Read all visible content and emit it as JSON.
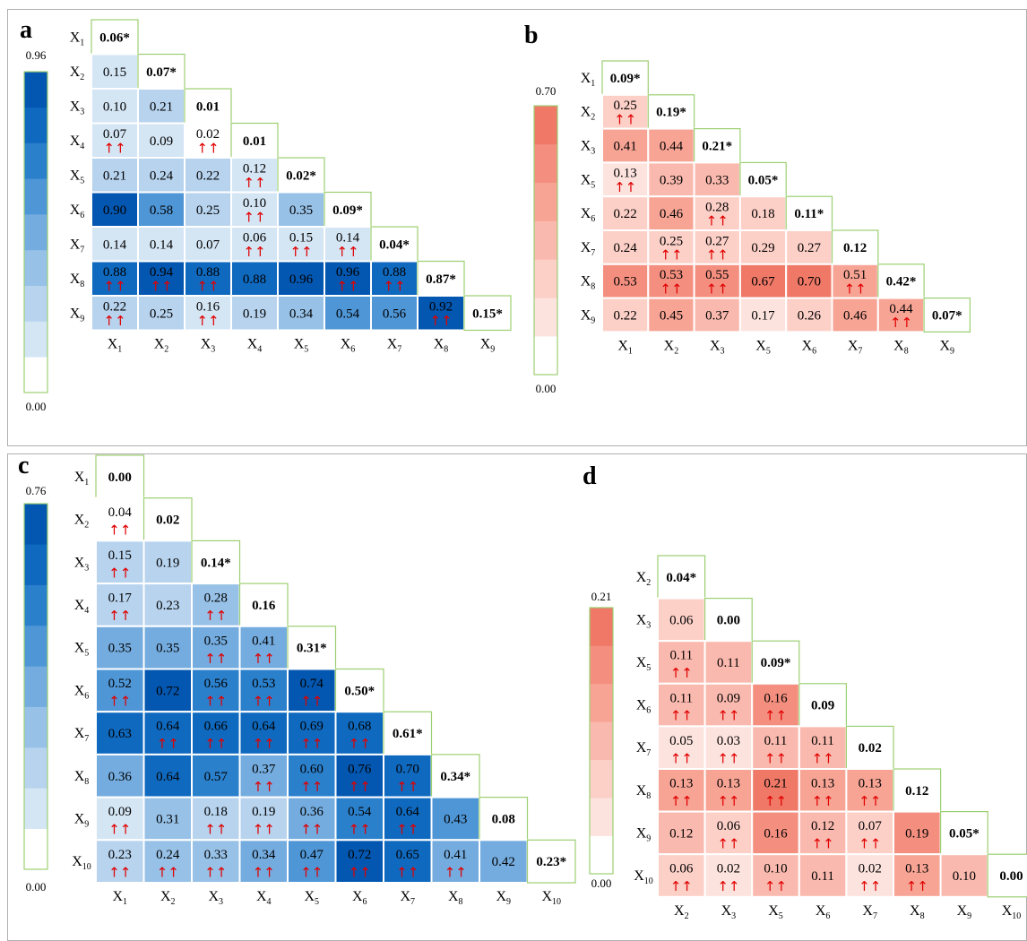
{
  "colors": {
    "diag_border": "#9ccf72",
    "cell_border": "#ffffff",
    "arrow": "#e00000",
    "blue_scale": [
      "#ffffff",
      "#d4e5f4",
      "#b7d3ee",
      "#97c1e7",
      "#74acdf",
      "#4f96d6",
      "#2b80cc",
      "#0f69bf",
      "#0357b0"
    ],
    "red_scale": [
      "#ffffff",
      "#fde3de",
      "#fccfc7",
      "#fab9ae",
      "#f7a495",
      "#f48f7f",
      "#ef7867"
    ]
  },
  "arrow_glyph": "↑↑",
  "chart_data": [
    {
      "type": "heatmap",
      "letter": "a",
      "palette": "blue",
      "scale_max_label": "0.96",
      "scale_min_label": "0.00",
      "vmax": 0.96,
      "row_labels": [
        [
          "X",
          "1"
        ],
        [
          "X",
          "2"
        ],
        [
          "X",
          "3"
        ],
        [
          "X",
          "4"
        ],
        [
          "X",
          "5"
        ],
        [
          "X",
          "6"
        ],
        [
          "X",
          "7"
        ],
        [
          "X",
          "8"
        ],
        [
          "X",
          "9"
        ]
      ],
      "col_labels": [
        [
          "X",
          "1"
        ],
        [
          "X",
          "2"
        ],
        [
          "X",
          "3"
        ],
        [
          "X",
          "4"
        ],
        [
          "X",
          "5"
        ],
        [
          "X",
          "6"
        ],
        [
          "X",
          "7"
        ],
        [
          "X",
          "8"
        ],
        [
          "X",
          "9"
        ]
      ],
      "rows": [
        [
          {
            "v": "0.06*",
            "d": true
          }
        ],
        [
          {
            "v": "0.15"
          },
          {
            "v": "0.07*",
            "d": true
          }
        ],
        [
          {
            "v": "0.10"
          },
          {
            "v": "0.21"
          },
          {
            "v": "0.01",
            "d": true
          }
        ],
        [
          {
            "v": "0.07",
            "a": true
          },
          {
            "v": "0.09"
          },
          {
            "v": "0.02",
            "a": true
          },
          {
            "v": "0.01",
            "d": true
          }
        ],
        [
          {
            "v": "0.21"
          },
          {
            "v": "0.24"
          },
          {
            "v": "0.22"
          },
          {
            "v": "0.12",
            "a": true
          },
          {
            "v": "0.02*",
            "d": true
          }
        ],
        [
          {
            "v": "0.90"
          },
          {
            "v": "0.58"
          },
          {
            "v": "0.25"
          },
          {
            "v": "0.10",
            "a": true
          },
          {
            "v": "0.35"
          },
          {
            "v": "0.09*",
            "d": true
          }
        ],
        [
          {
            "v": "0.14"
          },
          {
            "v": "0.14"
          },
          {
            "v": "0.07"
          },
          {
            "v": "0.06",
            "a": true
          },
          {
            "v": "0.15",
            "a": true
          },
          {
            "v": "0.14",
            "a": true
          },
          {
            "v": "0.04*",
            "d": true
          }
        ],
        [
          {
            "v": "0.88",
            "a": true
          },
          {
            "v": "0.94",
            "a": true
          },
          {
            "v": "0.88",
            "a": true
          },
          {
            "v": "0.88"
          },
          {
            "v": "0.96"
          },
          {
            "v": "0.96",
            "a": true
          },
          {
            "v": "0.88",
            "a": true
          },
          {
            "v": "0.87*",
            "d": true
          }
        ],
        [
          {
            "v": "0.22",
            "a": true
          },
          {
            "v": "0.25"
          },
          {
            "v": "0.16",
            "a": true
          },
          {
            "v": "0.19"
          },
          {
            "v": "0.34"
          },
          {
            "v": "0.54"
          },
          {
            "v": "0.56"
          },
          {
            "v": "0.92",
            "a": true
          },
          {
            "v": "0.15*",
            "d": true
          }
        ]
      ]
    },
    {
      "type": "heatmap",
      "letter": "b",
      "palette": "red",
      "scale_max_label": "0.70",
      "scale_min_label": "0.00",
      "vmax": 0.7,
      "row_labels": [
        [
          "X",
          "1"
        ],
        [
          "X",
          "2"
        ],
        [
          "X",
          "3"
        ],
        [
          "X",
          "5"
        ],
        [
          "X",
          "6"
        ],
        [
          "X",
          "7"
        ],
        [
          "X",
          "8"
        ],
        [
          "X",
          "9"
        ]
      ],
      "col_labels": [
        [
          "X",
          "1"
        ],
        [
          "X",
          "2"
        ],
        [
          "X",
          "3"
        ],
        [
          "X",
          "5"
        ],
        [
          "X",
          "6"
        ],
        [
          "X",
          "7"
        ],
        [
          "X",
          "8"
        ],
        [
          "X",
          "9"
        ]
      ],
      "rows": [
        [
          {
            "v": "0.09*",
            "d": true
          }
        ],
        [
          {
            "v": "0.25",
            "a": true
          },
          {
            "v": "0.19*",
            "d": true
          }
        ],
        [
          {
            "v": "0.41"
          },
          {
            "v": "0.44"
          },
          {
            "v": "0.21*",
            "d": true
          }
        ],
        [
          {
            "v": "0.13",
            "a": true
          },
          {
            "v": "0.39"
          },
          {
            "v": "0.33"
          },
          {
            "v": "0.05*",
            "d": true
          }
        ],
        [
          {
            "v": "0.22"
          },
          {
            "v": "0.46"
          },
          {
            "v": "0.28",
            "a": true
          },
          {
            "v": "0.18"
          },
          {
            "v": "0.11*",
            "d": true
          }
        ],
        [
          {
            "v": "0.24"
          },
          {
            "v": "0.25",
            "a": true
          },
          {
            "v": "0.27",
            "a": true
          },
          {
            "v": "0.29"
          },
          {
            "v": "0.27"
          },
          {
            "v": "0.12",
            "d": true
          }
        ],
        [
          {
            "v": "0.53"
          },
          {
            "v": "0.53",
            "a": true
          },
          {
            "v": "0.55",
            "a": true
          },
          {
            "v": "0.67"
          },
          {
            "v": "0.70"
          },
          {
            "v": "0.51",
            "a": true
          },
          {
            "v": "0.42*",
            "d": true
          }
        ],
        [
          {
            "v": "0.22"
          },
          {
            "v": "0.45"
          },
          {
            "v": "0.37"
          },
          {
            "v": "0.17"
          },
          {
            "v": "0.26"
          },
          {
            "v": "0.46"
          },
          {
            "v": "0.44",
            "a": true
          },
          {
            "v": "0.07*",
            "d": true
          }
        ]
      ]
    },
    {
      "type": "heatmap",
      "letter": "c",
      "palette": "blue",
      "scale_max_label": "0.76",
      "scale_min_label": "0.00",
      "vmax": 0.76,
      "row_labels": [
        [
          "X",
          "1"
        ],
        [
          "X",
          "2"
        ],
        [
          "X",
          "3"
        ],
        [
          "X",
          "4"
        ],
        [
          "X",
          "5"
        ],
        [
          "X",
          "6"
        ],
        [
          "X",
          "7"
        ],
        [
          "X",
          "8"
        ],
        [
          "X",
          "9"
        ],
        [
          "X",
          "10"
        ]
      ],
      "col_labels": [
        [
          "X",
          "1"
        ],
        [
          "X",
          "2"
        ],
        [
          "X",
          "3"
        ],
        [
          "X",
          "4"
        ],
        [
          "X",
          "5"
        ],
        [
          "X",
          "6"
        ],
        [
          "X",
          "7"
        ],
        [
          "X",
          "8"
        ],
        [
          "X",
          "9"
        ],
        [
          "X",
          "10"
        ]
      ],
      "rows": [
        [
          {
            "v": "0.00",
            "d": true
          }
        ],
        [
          {
            "v": "0.04",
            "a": true
          },
          {
            "v": "0.02",
            "d": true
          }
        ],
        [
          {
            "v": "0.15",
            "a": true
          },
          {
            "v": "0.19"
          },
          {
            "v": "0.14*",
            "d": true
          }
        ],
        [
          {
            "v": "0.17",
            "a": true
          },
          {
            "v": "0.23"
          },
          {
            "v": "0.28",
            "a": true
          },
          {
            "v": "0.16",
            "d": true
          }
        ],
        [
          {
            "v": "0.35"
          },
          {
            "v": "0.35"
          },
          {
            "v": "0.35",
            "a": true
          },
          {
            "v": "0.41",
            "a": true
          },
          {
            "v": "0.31*",
            "d": true
          }
        ],
        [
          {
            "v": "0.52",
            "a": true
          },
          {
            "v": "0.72"
          },
          {
            "v": "0.56",
            "a": true
          },
          {
            "v": "0.53",
            "a": true
          },
          {
            "v": "0.74",
            "a": true
          },
          {
            "v": "0.50*",
            "d": true
          }
        ],
        [
          {
            "v": "0.63"
          },
          {
            "v": "0.64",
            "a": true
          },
          {
            "v": "0.66",
            "a": true
          },
          {
            "v": "0.64",
            "a": true
          },
          {
            "v": "0.69",
            "a": true
          },
          {
            "v": "0.68",
            "a": true
          },
          {
            "v": "0.61*",
            "d": true
          }
        ],
        [
          {
            "v": "0.36"
          },
          {
            "v": "0.64"
          },
          {
            "v": "0.57"
          },
          {
            "v": "0.37",
            "a": true
          },
          {
            "v": "0.60",
            "a": true
          },
          {
            "v": "0.76",
            "a": true
          },
          {
            "v": "0.70",
            "a": true
          },
          {
            "v": "0.34*",
            "d": true
          }
        ],
        [
          {
            "v": "0.09",
            "a": true
          },
          {
            "v": "0.31"
          },
          {
            "v": "0.18",
            "a": true
          },
          {
            "v": "0.19",
            "a": true
          },
          {
            "v": "0.36",
            "a": true
          },
          {
            "v": "0.54",
            "a": true
          },
          {
            "v": "0.64",
            "a": true
          },
          {
            "v": "0.43"
          },
          {
            "v": "0.08",
            "d": true
          }
        ],
        [
          {
            "v": "0.23",
            "a": true
          },
          {
            "v": "0.24",
            "a": true
          },
          {
            "v": "0.33",
            "a": true
          },
          {
            "v": "0.34",
            "a": true
          },
          {
            "v": "0.47",
            "a": true
          },
          {
            "v": "0.72",
            "a": true
          },
          {
            "v": "0.65",
            "a": true
          },
          {
            "v": "0.41",
            "a": true
          },
          {
            "v": "0.42"
          },
          {
            "v": "0.23*",
            "d": true
          }
        ]
      ]
    },
    {
      "type": "heatmap",
      "letter": "d",
      "palette": "red",
      "scale_max_label": "0.21",
      "scale_min_label": "0.00",
      "vmax": 0.21,
      "row_labels": [
        [
          "X",
          "2"
        ],
        [
          "X",
          "3"
        ],
        [
          "X",
          "5"
        ],
        [
          "X",
          "6"
        ],
        [
          "X",
          "7"
        ],
        [
          "X",
          "8"
        ],
        [
          "X",
          "9"
        ],
        [
          "X",
          "10"
        ]
      ],
      "col_labels": [
        [
          "X",
          "2"
        ],
        [
          "X",
          "3"
        ],
        [
          "X",
          "5"
        ],
        [
          "X",
          "6"
        ],
        [
          "X",
          "7"
        ],
        [
          "X",
          "8"
        ],
        [
          "X",
          "9"
        ],
        [
          "X",
          "10"
        ]
      ],
      "rows": [
        [
          {
            "v": "0.04*",
            "d": true
          }
        ],
        [
          {
            "v": "0.06"
          },
          {
            "v": "0.00",
            "d": true
          }
        ],
        [
          {
            "v": "0.11",
            "a": true
          },
          {
            "v": "0.11"
          },
          {
            "v": "0.09*",
            "d": true
          }
        ],
        [
          {
            "v": "0.11",
            "a": true
          },
          {
            "v": "0.09",
            "a": true
          },
          {
            "v": "0.16",
            "a": true
          },
          {
            "v": "0.09",
            "d": true
          }
        ],
        [
          {
            "v": "0.05",
            "a": true
          },
          {
            "v": "0.03",
            "a": true
          },
          {
            "v": "0.11",
            "a": true
          },
          {
            "v": "0.11",
            "a": true
          },
          {
            "v": "0.02",
            "d": true
          }
        ],
        [
          {
            "v": "0.13",
            "a": true
          },
          {
            "v": "0.13",
            "a": true
          },
          {
            "v": "0.21",
            "a": true
          },
          {
            "v": "0.13",
            "a": true
          },
          {
            "v": "0.13",
            "a": true
          },
          {
            "v": "0.12",
            "d": true
          }
        ],
        [
          {
            "v": "0.12"
          },
          {
            "v": "0.06",
            "a": true
          },
          {
            "v": "0.16"
          },
          {
            "v": "0.12",
            "a": true
          },
          {
            "v": "0.07",
            "a": true
          },
          {
            "v": "0.19"
          },
          {
            "v": "0.05*",
            "d": true
          }
        ],
        [
          {
            "v": "0.06",
            "a": true
          },
          {
            "v": "0.02",
            "a": true
          },
          {
            "v": "0.10",
            "a": true
          },
          {
            "v": "0.11"
          },
          {
            "v": "0.02",
            "a": true
          },
          {
            "v": "0.13",
            "a": true
          },
          {
            "v": "0.10"
          },
          {
            "v": "0.00",
            "d": true
          }
        ]
      ]
    }
  ]
}
